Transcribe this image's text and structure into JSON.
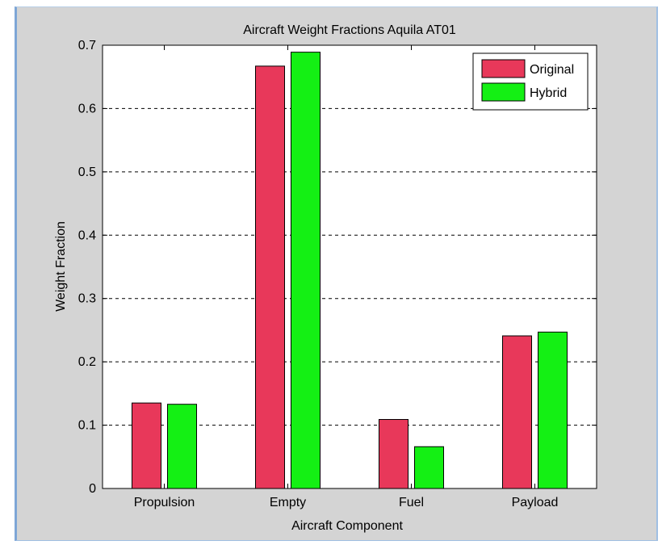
{
  "chart_data": {
    "type": "bar",
    "title": "Aircraft Weight Fractions Aquila AT01",
    "xlabel": "Aircraft Component",
    "ylabel": "Weight Fraction",
    "categories": [
      "Propulsion",
      "Empty",
      "Fuel",
      "Payload"
    ],
    "series": [
      {
        "name": "Original",
        "values": [
          0.135,
          0.667,
          0.109,
          0.241
        ],
        "color": "#e8385a"
      },
      {
        "name": "Hybrid",
        "values": [
          0.133,
          0.689,
          0.066,
          0.247
        ],
        "color": "#14f014"
      }
    ],
    "ylim": [
      0,
      0.7
    ],
    "yticks": [
      "0",
      "0.1",
      "0.2",
      "0.3",
      "0.4",
      "0.5",
      "0.6",
      "0.7"
    ],
    "grid": "y-dashed",
    "legend_position": "top-right"
  },
  "colors": {
    "panel_background": "#d4d4d4",
    "axes_background": "#ffffff",
    "window_border": "#7ea6d6"
  }
}
